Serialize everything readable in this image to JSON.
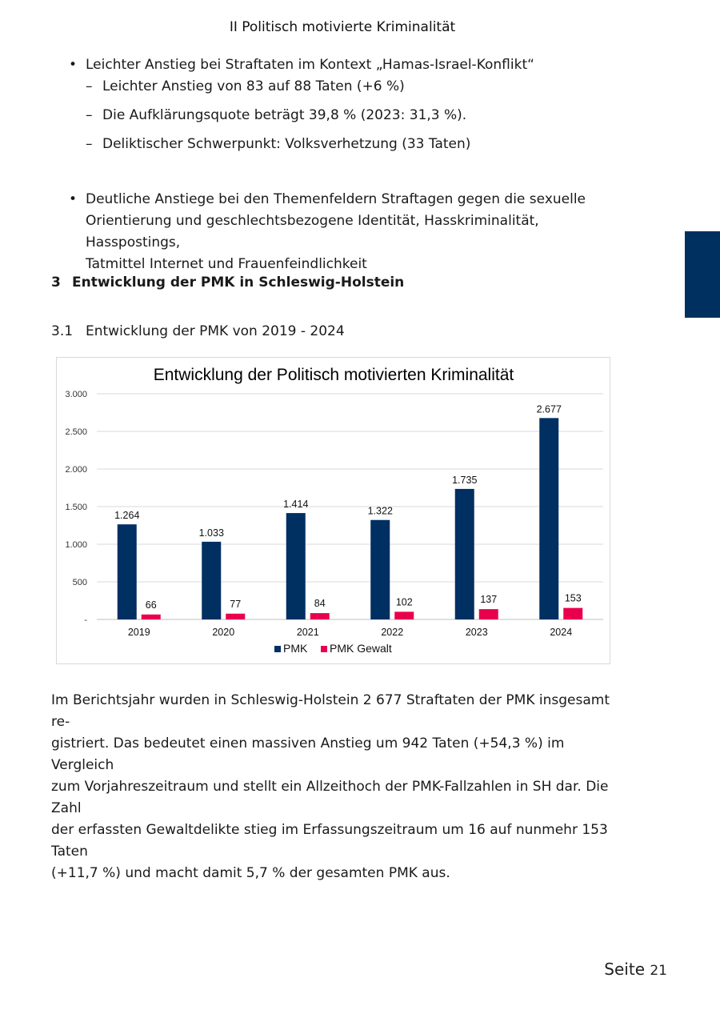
{
  "header": {
    "title": "II Politisch motivierte Kriminalität"
  },
  "bullets": [
    {
      "text": "Leichter Anstieg bei Straftaten im Kontext „Hamas-Israel-Konflikt“",
      "subitems": [
        "Leichter Anstieg von 83 auf 88 Taten (+6 %)",
        "Die Aufklärungsquote beträgt 39,8 % (2023: 31,3 %).",
        "Deliktischer Schwerpunkt: Volksverhetzung (33 Taten)"
      ]
    },
    {
      "text_lines": [
        "Deutliche Anstiege bei den Themenfeldern Straftagen gegen die sexuelle",
        "Orientierung und geschlechtsbezogene Identität, Hasskriminalität, Hasspostings,",
        "Tatmittel Internet und Frauenfeindlichkeit"
      ]
    }
  ],
  "bullet_symbol": "•",
  "dash_symbol": "–",
  "section": {
    "number": "3",
    "title": "Entwicklung der PMK in Schleswig-Holstein"
  },
  "subsection": {
    "number": "3.1",
    "title": "Entwicklung der PMK von 2019 - 2024"
  },
  "chart_data": {
    "type": "bar",
    "title": "Entwicklung der Politisch motivierten Kriminalität",
    "categories": [
      "2019",
      "2020",
      "2021",
      "2022",
      "2023",
      "2024"
    ],
    "series": [
      {
        "name": "PMK",
        "values": [
          1264,
          1033,
          1414,
          1322,
          1735,
          2677
        ],
        "labels": [
          "1.264",
          "1.033",
          "1.414",
          "1.322",
          "1.735",
          "2.677"
        ],
        "color": "#002f62"
      },
      {
        "name": "PMK Gewalt",
        "values": [
          66,
          77,
          84,
          102,
          137,
          153
        ],
        "labels": [
          "66",
          "77",
          "84",
          "102",
          "137",
          "153"
        ],
        "color": "#e8004e"
      }
    ],
    "ylim": [
      0,
      3000
    ],
    "yticks": [
      0,
      500,
      1000,
      1500,
      2000,
      2500,
      3000
    ],
    "ytick_labels": [
      "-",
      "500",
      "1.000",
      "1.500",
      "2.000",
      "2.500",
      "3.000"
    ],
    "grid": true,
    "legend": "bottom-center",
    "xlabel": "",
    "ylabel": ""
  },
  "body_lines": [
    "Im Berichtsjahr wurden in Schleswig-Holstein 2 677 Straftaten der PMK insgesamt re-",
    "gistriert. Das bedeutet einen massiven Anstieg um 942 Taten (+54,3 %) im Vergleich",
    "zum Vorjahreszeitraum und stellt ein Allzeithoch der PMK-Fallzahlen in SH dar. Die Zahl",
    "der erfassten Gewaltdelikte stieg im Erfassungszeitraum um 16 auf nunmehr 153 Taten",
    "(+11,7 %) und macht damit 5,7 % der gesamten PMK aus."
  ],
  "footer": {
    "label": "Seite",
    "number": "21"
  },
  "colors": {
    "accent": "#00305f"
  }
}
